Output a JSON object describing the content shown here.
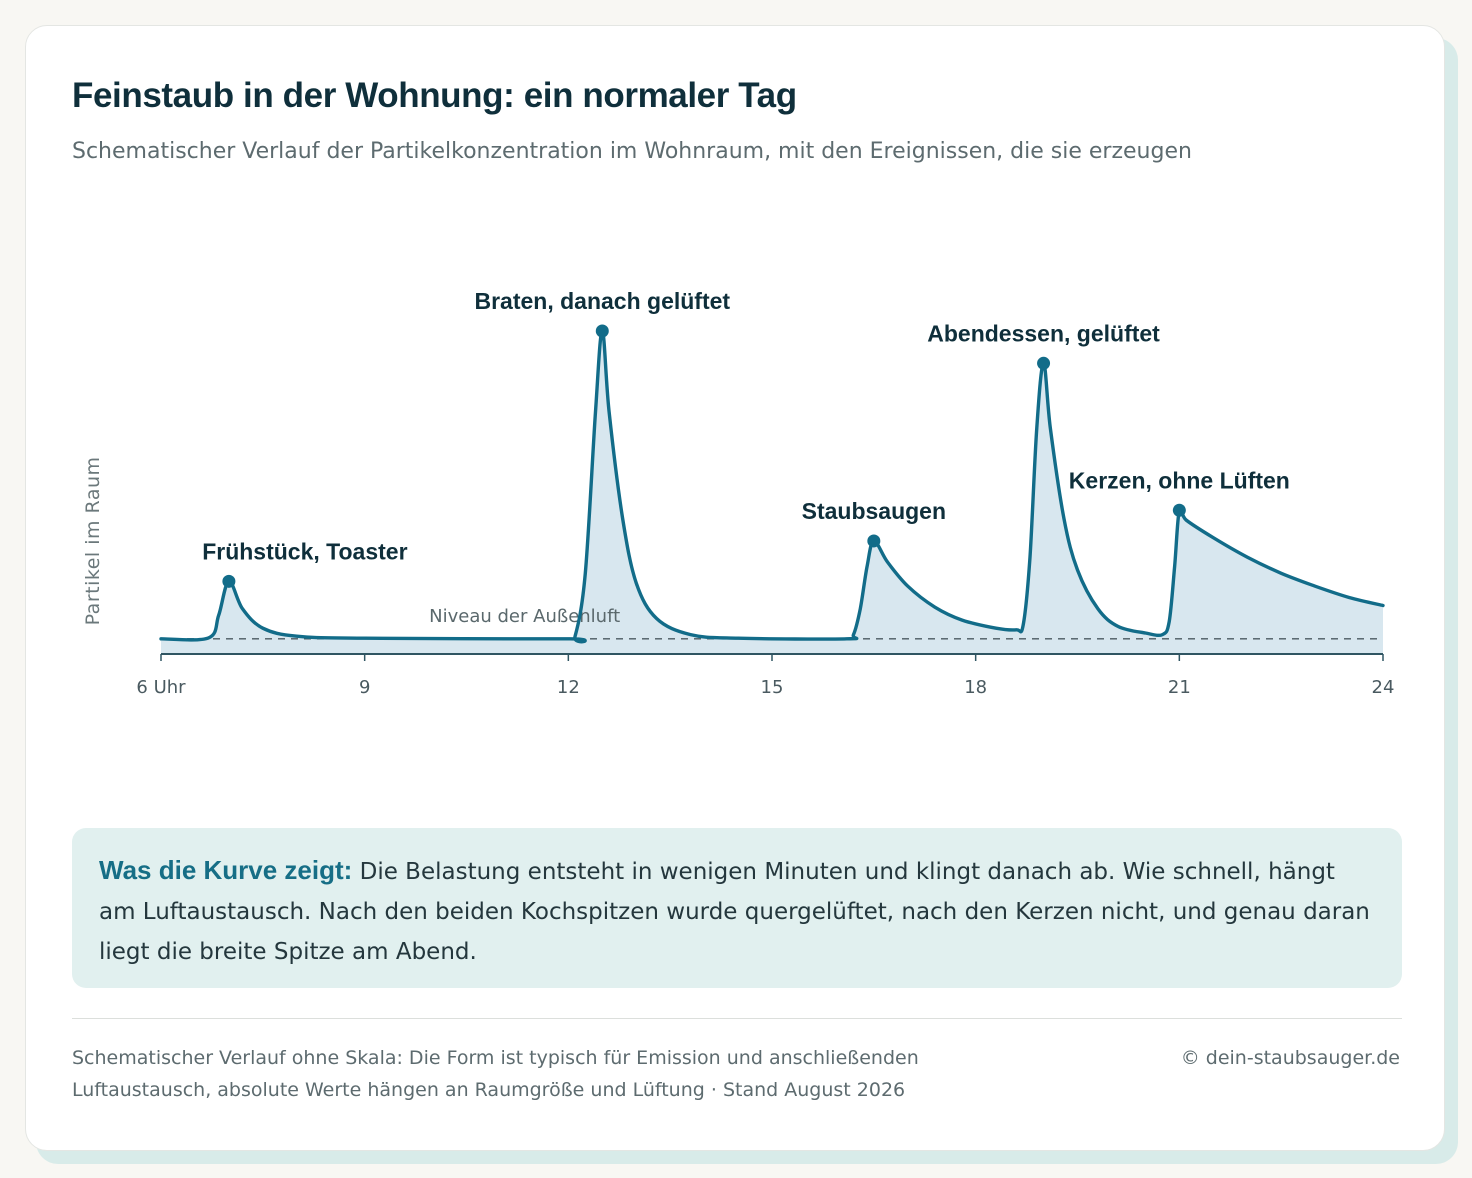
{
  "header": {
    "title": "Feinstaub in der Wohnung: ein normaler Tag",
    "subtitle": "Schematischer Verlauf der Partikelkonzentration im Wohnraum, mit den Ereignissen, die sie erzeugen"
  },
  "chart_data": {
    "type": "area",
    "ylabel": "Partikel im Raum",
    "xlabel": "",
    "xlim": [
      6,
      24
    ],
    "ylim": [
      0,
      100
    ],
    "x_ticks": [
      6,
      9,
      12,
      15,
      18,
      21,
      24
    ],
    "x_tick_labels": [
      "6 Uhr",
      "9",
      "12",
      "15",
      "18",
      "21",
      "24"
    ],
    "baseline": {
      "label": "Niveau der Außenluft",
      "value": 4.7
    },
    "peaks": [
      {
        "x": 7.0,
        "y": 22.5,
        "label": "Frühstück, Toaster"
      },
      {
        "x": 12.5,
        "y": 100,
        "label": "Braten, danach gelüftet"
      },
      {
        "x": 16.5,
        "y": 35,
        "label": "Staubsaugen"
      },
      {
        "x": 19.0,
        "y": 90,
        "label": "Abendessen, gelüftet"
      },
      {
        "x": 21.0,
        "y": 44.5,
        "label": "Kerzen, ohne Lüften"
      }
    ],
    "series": [
      {
        "values": [
          [
            6.0,
            4.7
          ],
          [
            6.7,
            5
          ],
          [
            6.85,
            12
          ],
          [
            7.0,
            22.5
          ],
          [
            7.2,
            14
          ],
          [
            7.5,
            8
          ],
          [
            8.0,
            5.5
          ],
          [
            9.0,
            4.9
          ],
          [
            12.0,
            4.7
          ],
          [
            12.1,
            5.5
          ],
          [
            12.25,
            25
          ],
          [
            12.4,
            75
          ],
          [
            12.5,
            100
          ],
          [
            12.6,
            75
          ],
          [
            12.8,
            42
          ],
          [
            13.0,
            22
          ],
          [
            13.3,
            11
          ],
          [
            13.8,
            6
          ],
          [
            14.5,
            4.9
          ],
          [
            16.1,
            4.7
          ],
          [
            16.2,
            6
          ],
          [
            16.3,
            14
          ],
          [
            16.4,
            27
          ],
          [
            16.5,
            35
          ],
          [
            16.7,
            28.5
          ],
          [
            17.0,
            21
          ],
          [
            17.4,
            14.5
          ],
          [
            17.8,
            10.5
          ],
          [
            18.3,
            8
          ],
          [
            18.6,
            7.5
          ],
          [
            18.7,
            9
          ],
          [
            18.8,
            30
          ],
          [
            18.9,
            70
          ],
          [
            19.0,
            90
          ],
          [
            19.1,
            70
          ],
          [
            19.3,
            42
          ],
          [
            19.5,
            26
          ],
          [
            19.8,
            14
          ],
          [
            20.1,
            8.5
          ],
          [
            20.5,
            6.5
          ],
          [
            20.75,
            6
          ],
          [
            20.85,
            10
          ],
          [
            20.93,
            27
          ],
          [
            21.0,
            44.5
          ],
          [
            21.1,
            41.5
          ],
          [
            21.5,
            36
          ],
          [
            22.0,
            30
          ],
          [
            22.5,
            25
          ],
          [
            23.0,
            21
          ],
          [
            23.5,
            17.5
          ],
          [
            24.0,
            15
          ]
        ]
      }
    ],
    "colors": {
      "line": "#126c89",
      "fill": "#d8e7ef",
      "baseline": "#4a5a60",
      "axis": "#2f5562"
    }
  },
  "note": {
    "lead": "Was die Kurve zeigt:",
    "body": "Die Belastung entsteht in wenigen Minuten und klingt danach ab. Wie schnell, hängt am Luftaustausch. Nach den beiden Kochspitzen wurde quergelüftet, nach den Kerzen nicht, und genau daran liegt die breite Spitze am Abend."
  },
  "footer": {
    "source": "Schematischer Verlauf ohne Skala: Die Form ist typisch für Emission und anschließenden Luftaustausch, absolute Werte hängen an Raumgröße und Lüftung · Stand August 2026",
    "copyright": "© dein-staubsauger.de"
  }
}
